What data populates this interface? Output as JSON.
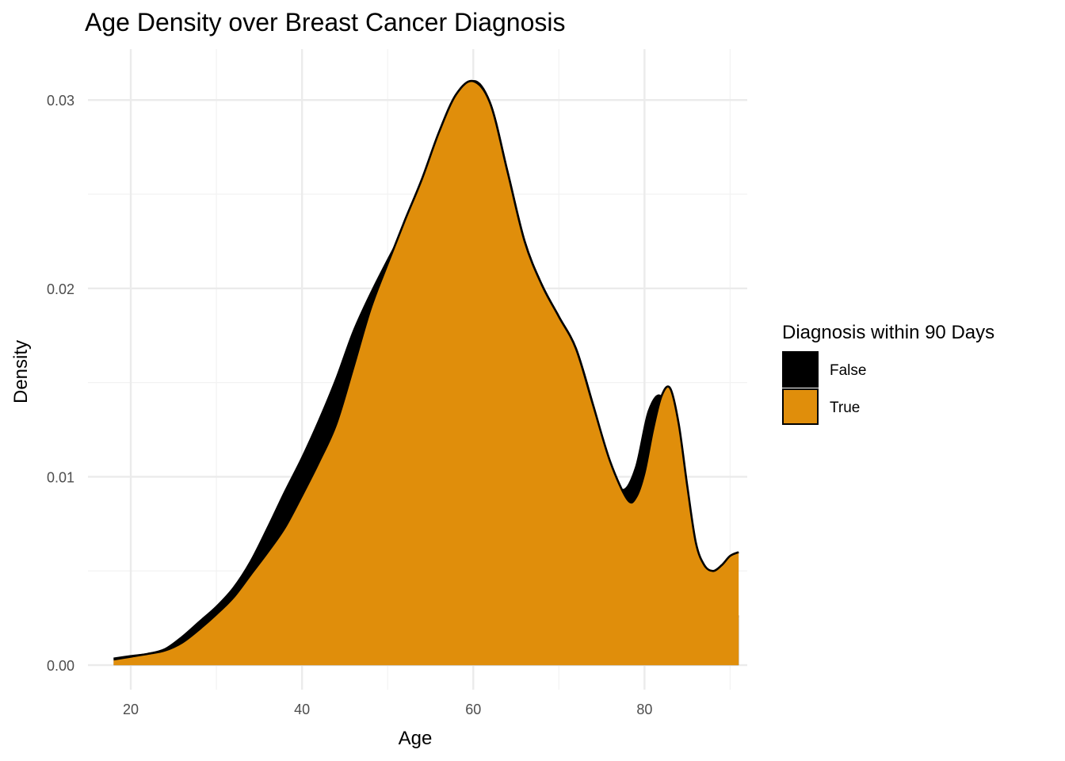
{
  "chart_data": {
    "type": "area",
    "title": "Age Density over Breast Cancer Diagnosis",
    "xlabel": "Age",
    "ylabel": "Density",
    "xlim": [
      15,
      92
    ],
    "ylim": [
      -0.0013,
      0.0327
    ],
    "x_ticks": [
      20,
      40,
      60,
      80
    ],
    "x_tick_labels": [
      "20",
      "40",
      "60",
      "80"
    ],
    "y_ticks": [
      0.0,
      0.01,
      0.02,
      0.03
    ],
    "y_tick_labels": [
      "0.00",
      "0.01",
      "0.02",
      "0.03"
    ],
    "grid": true,
    "legend": {
      "title": "Diagnosis within 90 Days",
      "position": "right",
      "entries": [
        {
          "label": "False",
          "color": "#000000"
        },
        {
          "label": "True",
          "color": "#E08E0B"
        }
      ]
    },
    "series": [
      {
        "name": "False",
        "color": "#000000",
        "x": [
          18,
          20,
          22,
          24,
          26,
          28,
          30,
          32,
          34,
          36,
          38,
          40,
          42,
          44,
          46,
          48,
          50,
          52,
          54,
          56,
          58,
          60,
          62,
          64,
          66,
          68,
          70,
          72,
          74,
          76,
          77.5,
          79,
          80.5,
          82,
          83,
          84,
          85,
          86,
          87,
          88,
          89,
          90,
          91
        ],
        "y": [
          0.00035,
          0.00048,
          0.0006,
          0.00085,
          0.0015,
          0.0023,
          0.0031,
          0.0041,
          0.0055,
          0.0073,
          0.0092,
          0.011,
          0.013,
          0.0152,
          0.0177,
          0.0197,
          0.0215,
          0.0232,
          0.0248,
          0.0267,
          0.0295,
          0.031,
          0.0298,
          0.0262,
          0.0225,
          0.0202,
          0.0185,
          0.0168,
          0.0138,
          0.0105,
          0.0093,
          0.0105,
          0.0135,
          0.0142,
          0.0115,
          0.008,
          0.0055,
          0.004,
          0.0031,
          0.0028,
          0.0027,
          0.0026,
          0.0026
        ]
      },
      {
        "name": "True",
        "color": "#E08E0B",
        "x": [
          18,
          20,
          22,
          24,
          26,
          28,
          30,
          32,
          34,
          36,
          38,
          40,
          42,
          44,
          46,
          48,
          50,
          52,
          54,
          56,
          58,
          60,
          62,
          64,
          66,
          68,
          70,
          72,
          74,
          76,
          78,
          79,
          80,
          81,
          82,
          83,
          84,
          85,
          86,
          87,
          88,
          89,
          90,
          91
        ],
        "y": [
          0.0003,
          0.00045,
          0.0006,
          0.00078,
          0.0012,
          0.0019,
          0.0027,
          0.0036,
          0.0048,
          0.006,
          0.0073,
          0.009,
          0.0108,
          0.0128,
          0.0158,
          0.0189,
          0.0213,
          0.0236,
          0.0258,
          0.0283,
          0.0303,
          0.031,
          0.0298,
          0.0262,
          0.0225,
          0.0202,
          0.0185,
          0.0168,
          0.0138,
          0.0108,
          0.0088,
          0.0089,
          0.0102,
          0.0125,
          0.0143,
          0.0147,
          0.0128,
          0.0095,
          0.0065,
          0.0053,
          0.005,
          0.0053,
          0.0058,
          0.006
        ]
      }
    ]
  }
}
